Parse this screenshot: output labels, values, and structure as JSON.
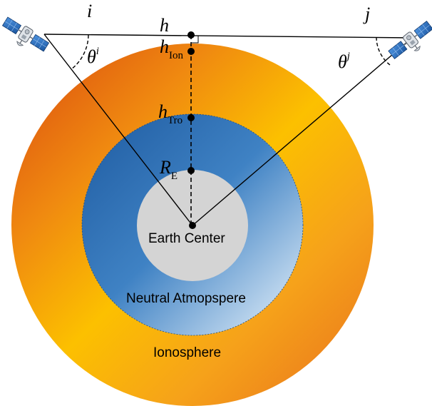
{
  "labels": {
    "sat_i": "i",
    "sat_j": "j",
    "theta_base": "θ",
    "theta_i_sup": "i",
    "theta_j_sup": "j",
    "h": "h",
    "h_ion_base": "h",
    "h_ion_sub": "Ion",
    "h_tro_base": "h",
    "h_tro_sub": "Tro",
    "re_base": "R",
    "re_sub": "E",
    "earth_center": "Earth Center",
    "neutral_atmosphere": "Neutral Atmopspere",
    "ionosphere": "Ionosphere"
  },
  "colors": {
    "ionosphere_dark": "#e05a12",
    "ionosphere_light": "#fcc000",
    "neutral_dark": "#2e6db0",
    "neutral_light": "#d2e6f6",
    "earth_core": "#d4d4d4",
    "satellite_panel": "#2a6fc0",
    "satellite_body": "#d9dde3"
  },
  "icons": {
    "satellite_i": "satellite-icon",
    "satellite_j": "satellite-icon"
  }
}
